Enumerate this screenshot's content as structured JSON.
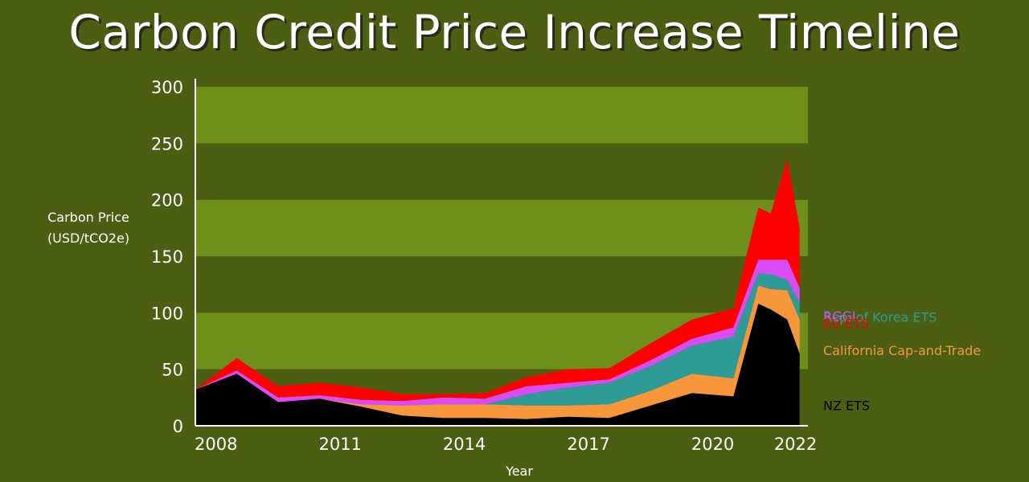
{
  "chart_data": {
    "type": "area",
    "stacked": true,
    "title": "Carbon Credit Price Increase Timeline",
    "xlabel": "Year",
    "ylabel": [
      "Carbon Price",
      "(USD/tCO2e)"
    ],
    "xlim": [
      2007.5,
      2022.3
    ],
    "ylim": [
      0,
      300
    ],
    "yticks": [
      0,
      50,
      100,
      150,
      200,
      250,
      300
    ],
    "xticks": [
      2008,
      2011,
      2014,
      2017,
      2020,
      2022
    ],
    "grid": "alternating horizontal bands",
    "legend": "labels at right edge of chart",
    "x": [
      2007.5,
      2008.5,
      2009.5,
      2010.5,
      2011.5,
      2012.5,
      2013.5,
      2014.5,
      2015.5,
      2016.5,
      2017.5,
      2018.5,
      2019.5,
      2020.5,
      2021.1,
      2021.4,
      2021.8,
      2022.1
    ],
    "series": [
      {
        "name": "NZ ETS",
        "color": "#000000",
        "values": [
          32,
          46,
          21,
          24,
          17,
          9,
          7,
          7,
          6,
          8,
          7,
          18,
          29,
          26,
          108,
          103,
          94,
          64
        ]
      },
      {
        "name": "California Cap-and-Trade",
        "color": "#f7963b",
        "values": [
          0,
          0,
          0,
          0,
          2,
          9,
          12,
          12,
          12,
          10,
          12,
          13,
          17,
          16,
          16,
          18,
          26,
          30
        ]
      },
      {
        "name": "Rep. of Korea ETS",
        "color": "#2e9b96",
        "values": [
          0,
          0,
          0,
          0,
          0,
          0,
          0,
          0,
          10,
          16,
          19,
          22,
          25,
          37,
          11,
          13,
          9,
          15
        ]
      },
      {
        "name": "RGGI",
        "color": "#d94cf5",
        "values": [
          0,
          3,
          4,
          3,
          4,
          4,
          6,
          5,
          7,
          4,
          3,
          5,
          6,
          8,
          12,
          13,
          18,
          13
        ]
      },
      {
        "name": "EU ETS",
        "color": "#ff0000",
        "values": [
          0,
          11,
          10,
          11,
          11,
          6,
          3,
          5,
          8,
          12,
          10,
          15,
          17,
          17,
          46,
          41,
          89,
          53
        ]
      }
    ]
  }
}
